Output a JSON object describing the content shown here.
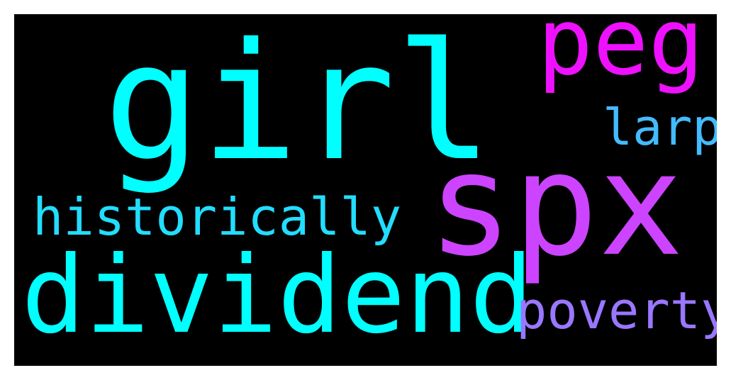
{
  "words": [
    {
      "text": "girl",
      "color": "#00ffff"
    },
    {
      "text": "peg",
      "color": "#ee11ff"
    },
    {
      "text": "larp",
      "color": "#44bbff"
    },
    {
      "text": "spx",
      "color": "#cc44ff"
    },
    {
      "text": "historically",
      "color": "#22ddff"
    },
    {
      "text": "dividend",
      "color": "#00ffff"
    },
    {
      "text": "poverty",
      "color": "#9977ff"
    }
  ]
}
